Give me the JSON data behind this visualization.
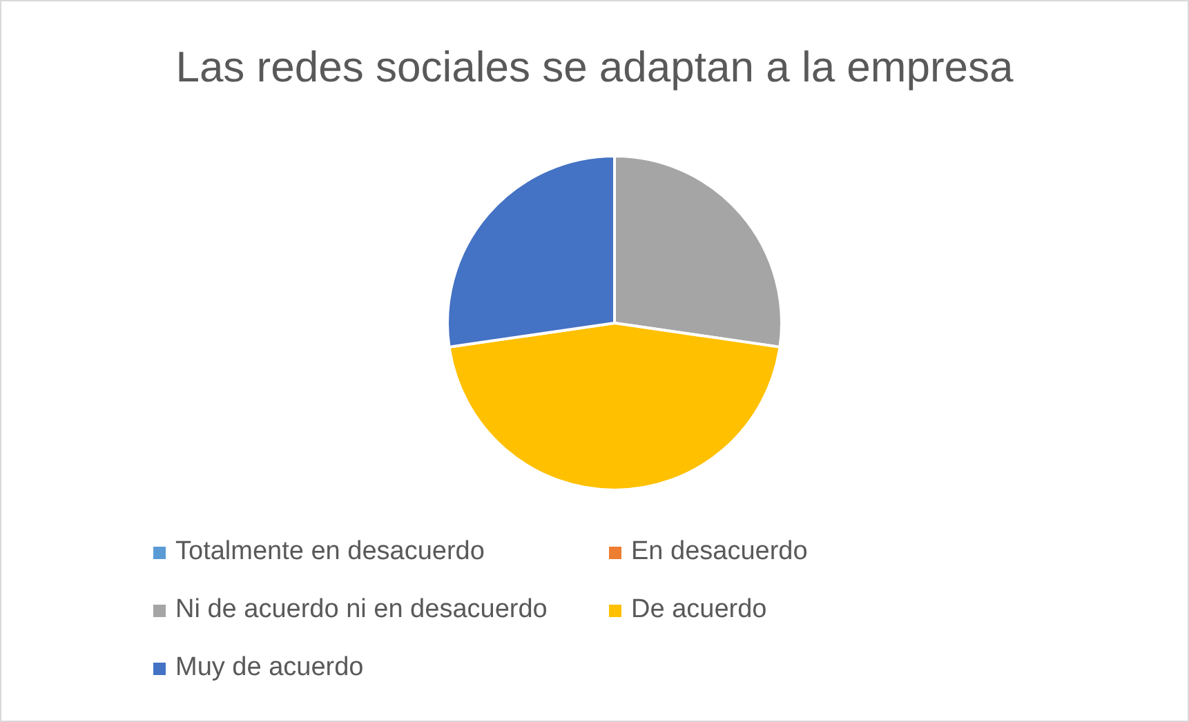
{
  "chart_data": {
    "type": "pie",
    "title": "Las redes sociales se adaptan a la empresa",
    "categories": [
      "Totalmente en desacuerdo",
      "En desacuerdo",
      "Ni de acuerdo ni en desacuerdo",
      "De acuerdo",
      "Muy de acuerdo"
    ],
    "values": [
      0,
      0,
      27.3,
      45.4,
      27.3
    ],
    "colors": [
      "#5b9bd5",
      "#ed7d31",
      "#a5a5a5",
      "#ffc000",
      "#4472c4"
    ],
    "legend": "bottom"
  }
}
